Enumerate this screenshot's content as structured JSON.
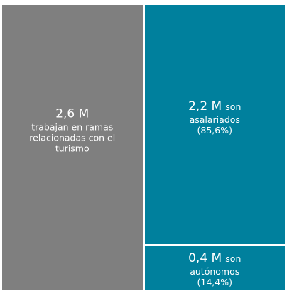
{
  "chart_data": {
    "type": "treemap",
    "values": [
      2.6
    ],
    "value_labels": [
      "2,6 M"
    ],
    "labels": [
      "trabajan en ramas relacionadas con el turismo"
    ],
    "color": "#7f7f7f",
    "children": {
      "values": [
        2.2,
        0.4
      ],
      "value_labels": [
        "2,2 M",
        "0,4 M"
      ],
      "prefix": "son",
      "labels": [
        "asalariados",
        "autónomos"
      ],
      "shares": [
        85.6,
        14.4
      ],
      "share_labels": [
        "(85,6%)",
        "(14,4%)"
      ],
      "color": "#00809d"
    }
  }
}
